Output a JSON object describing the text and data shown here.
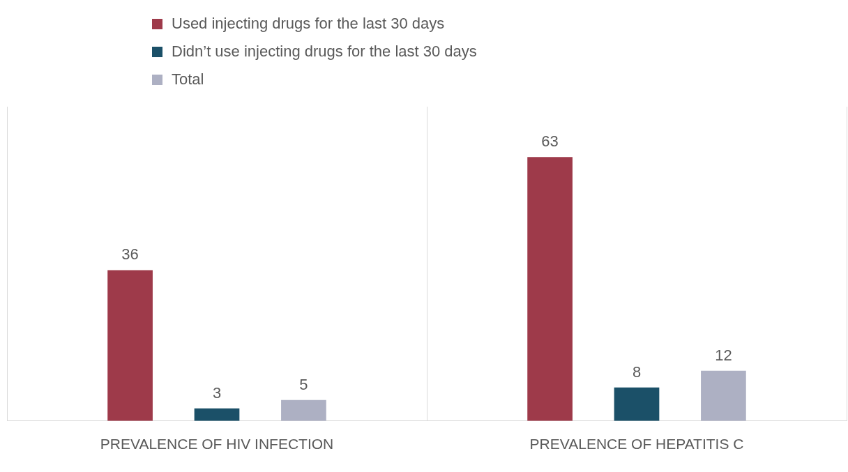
{
  "chart_data": {
    "type": "bar",
    "categories": [
      "PREVALENCE OF HIV INFECTION",
      "PREVALENCE OF HEPATITIS C"
    ],
    "series": [
      {
        "name": "Used injecting drugs for the last 30 days",
        "color": "#9e3a4a",
        "values": [
          36,
          63
        ]
      },
      {
        "name": "Didn’t use injecting drugs for the last 30 days",
        "color": "#1b5068",
        "values": [
          3,
          8
        ]
      },
      {
        "name": "Total",
        "color": "#adb0c3",
        "values": [
          5,
          12
        ]
      }
    ],
    "ylim": [
      0,
      75
    ],
    "tick_labels": "x",
    "grid": "x",
    "legend": "top",
    "data_labels": true
  }
}
